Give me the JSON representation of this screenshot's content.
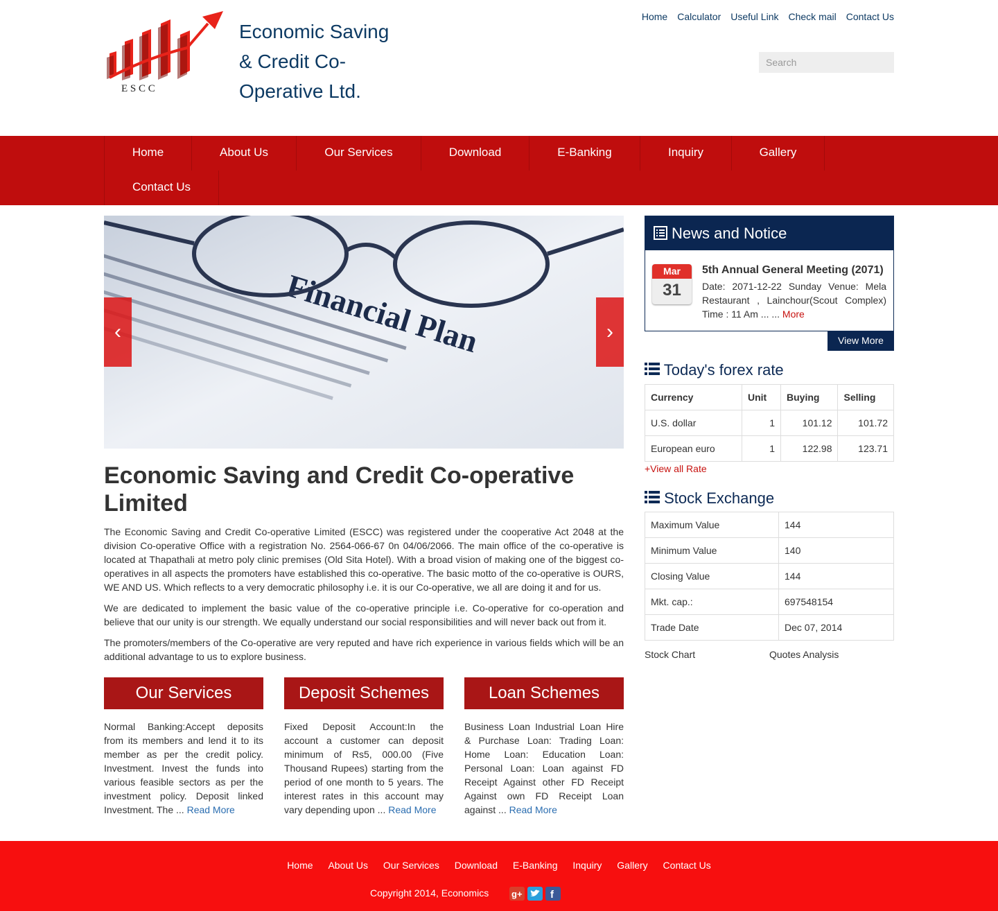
{
  "header": {
    "logo_text": "E S C C",
    "title": "Economic Saving & Credit Co-Operative Ltd.",
    "top_links": [
      "Home",
      "Calculator",
      "Useful Link",
      "Check mail",
      "Contact Us"
    ],
    "search_placeholder": "Search"
  },
  "nav": [
    "Home",
    "About Us",
    "Our Services",
    "Download",
    "E-Banking",
    "Inquiry",
    "Gallery",
    "Contact Us"
  ],
  "slider": {
    "caption": "Financial Plan",
    "prev": "‹",
    "next": "›"
  },
  "about": {
    "title": "Economic Saving and Credit Co-operative Limited",
    "paragraphs": [
      "The Economic Saving and Credit Co-operative Limited (ESCC) was registered under the cooperative Act 2048 at the division Co-operative Office with a registration No. 2564-066-67 0n 04/06/2066. The main office of the co-operative is located at Thapathali at metro poly clinic premises (Old Sita Hotel). With a broad vision of making one of the biggest co-operatives in all aspects the promoters have established this co-operative. The basic motto of the co-operative is OURS, WE AND US. Which reflects to a very democratic philosophy i.e. it is our Co-operative, we all are doing it and for us.",
      "We are dedicated to implement the basic value of the co-operative principle i.e. Co-operative for co-operation and believe that our unity is our strength. We equally understand our social responsibilities and will never back out from it.",
      "The promoters/members of the Co-operative are very reputed and have rich experience in various fields which will be an additional advantage to us to explore business."
    ]
  },
  "columns": [
    {
      "title": "Our Services",
      "text": "Normal Banking:Accept deposits from its members and lend it to its member as per the credit policy. Investment. Invest the funds into various feasible sectors as per the investment policy. Deposit linked Investment. The ... ",
      "link": "Read More"
    },
    {
      "title": "Deposit Schemes",
      "text": "Fixed Deposit Account:In the account a customer can deposit minimum of Rs5, 000.00 (Five Thousand Rupees) starting from the period of one month to 5 years. The interest rates in this account may vary depending upon ... ",
      "link": "Read More"
    },
    {
      "title": "Loan Schemes",
      "text": "Business Loan Industrial Loan Hire & Purchase Loan: Trading Loan: Home Loan: Education Loan: Personal Loan: Loan against FD Receipt Against other FD Receipt Against own FD Receipt Loan against ... ",
      "link": "Read More"
    }
  ],
  "news": {
    "title": "News and Notice",
    "month": "Mar",
    "day": "31",
    "item_title": "5th Annual General Meeting (2071)",
    "item_text": "Date: 2071-12-22 Sunday Venue: Mela Restaurant , Lainchour(Scout Complex) Time : 11 Am     ... ... ",
    "more": "More",
    "view_more": "View More"
  },
  "forex": {
    "title": "Today's forex rate",
    "headers": [
      "Currency",
      "Unit",
      "Buying",
      "Selling"
    ],
    "rows": [
      [
        "U.S. dollar",
        "1",
        "101.12",
        "101.72"
      ],
      [
        "European euro",
        "1",
        "122.98",
        "123.71"
      ]
    ],
    "view_all": "+View all Rate"
  },
  "stock": {
    "title": "Stock Exchange",
    "rows": [
      [
        "Maximum Value",
        "144"
      ],
      [
        "Minimum Value",
        "140"
      ],
      [
        "Closing Value",
        "144"
      ],
      [
        "Mkt. cap.:",
        "697548154"
      ],
      [
        "Trade Date",
        "Dec 07, 2014"
      ]
    ],
    "chart_link": "Stock Chart",
    "analysis_link": "Quotes Analysis"
  },
  "footer": {
    "links": [
      "Home",
      "About Us",
      "Our Services",
      "Download",
      "E-Banking",
      "Inquiry",
      "Gallery",
      "Contact Us"
    ],
    "copyright": "Copyright 2014, Economics"
  },
  "colors": {
    "nav_red": "#bf0d0d",
    "navy": "#0b2651",
    "footer_red": "#f70f0f",
    "accent_red": "#c7120f",
    "link_blue": "#2a6db0"
  }
}
